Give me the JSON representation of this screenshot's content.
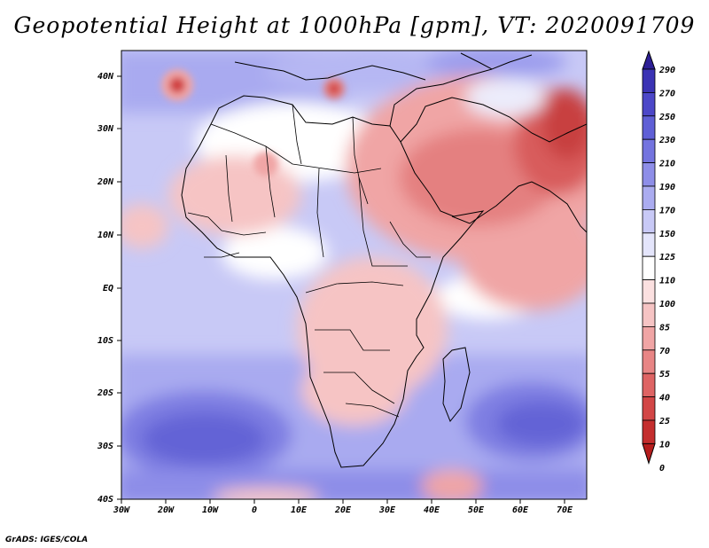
{
  "title": "Geopotential Height at 1000hPa [gpm], VT: 2020091709",
  "footer": "GrADS: IGES/COLA",
  "map": {
    "variable": "Geopotential Height",
    "level": "1000hPa",
    "units": "gpm",
    "valid_time": "2020091709",
    "lon_range": [
      -30,
      75
    ],
    "lat_range": [
      -40,
      45
    ],
    "lon_ticks": [
      "30W",
      "20W",
      "10W",
      "0",
      "10E",
      "20E",
      "30E",
      "40E",
      "50E",
      "60E",
      "70E"
    ],
    "lat_ticks": [
      "40N",
      "30N",
      "20N",
      "10N",
      "EQ",
      "10S",
      "20S",
      "30S",
      "40S"
    ]
  },
  "colorbar": {
    "levels": [
      "290",
      "270",
      "250",
      "230",
      "210",
      "190",
      "170",
      "150",
      "125",
      "110",
      "100",
      "85",
      "70",
      "55",
      "40",
      "25",
      "10",
      "0"
    ],
    "colors": [
      "#2d1f96",
      "#3b33b4",
      "#4c47c8",
      "#5f5fd6",
      "#7474df",
      "#8e8ee8",
      "#abacf0",
      "#c8c9f6",
      "#e4e5fb",
      "#ffffff",
      "#fbe0e0",
      "#f6c4c4",
      "#f0a5a5",
      "#e88585",
      "#de6464",
      "#d24646",
      "#c42e2e",
      "#b51d1d"
    ]
  },
  "annotations": {
    "palette": {
      "blue_dark": "#6060d4",
      "blue_mid": "#8d8de8",
      "blue_light": "#c8c9f6",
      "white": "#ffffff",
      "pink": "#f6c4c4",
      "red_mid": "#e48080",
      "red_dark": "#d04040"
    }
  }
}
